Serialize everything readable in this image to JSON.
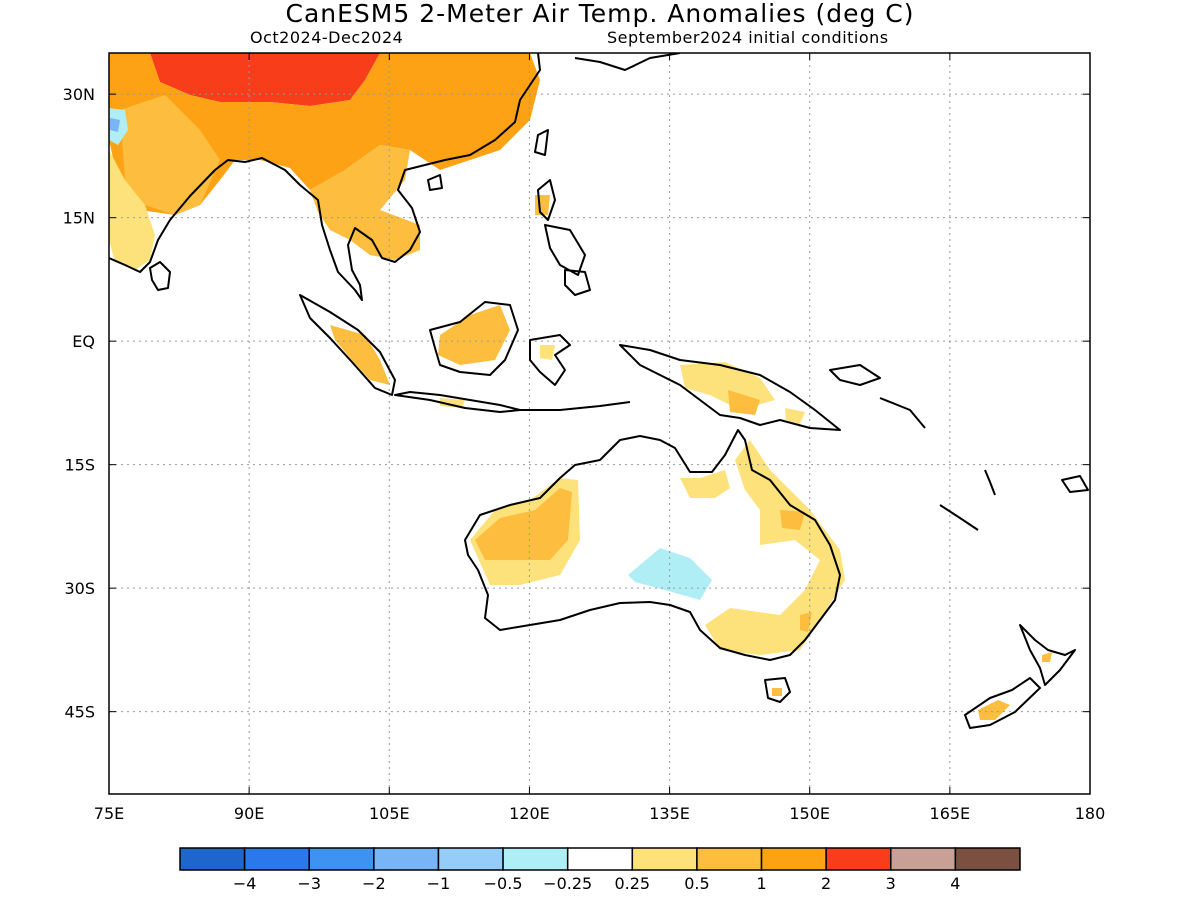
{
  "title": "CanESM5 2-Meter Air Temp. Anomalies (deg C)",
  "subtitle_left": "Oct2024-Dec2024",
  "subtitle_right": "September2024 initial conditions",
  "map": {
    "lon_range": [
      75,
      180
    ],
    "lat_range": [
      -55,
      35
    ],
    "lat_ticks": [
      {
        "value": 30,
        "label": "30N"
      },
      {
        "value": 15,
        "label": "15N"
      },
      {
        "value": 0,
        "label": "EQ"
      },
      {
        "value": -15,
        "label": "15S"
      },
      {
        "value": -30,
        "label": "30S"
      },
      {
        "value": -45,
        "label": "45S"
      }
    ],
    "lon_ticks": [
      {
        "value": 75,
        "label": "75E"
      },
      {
        "value": 90,
        "label": "90E"
      },
      {
        "value": 105,
        "label": "105E"
      },
      {
        "value": 120,
        "label": "120E"
      },
      {
        "value": 135,
        "label": "135E"
      },
      {
        "value": 150,
        "label": "150E"
      },
      {
        "value": 165,
        "label": "165E"
      },
      {
        "value": 180,
        "label": "180"
      }
    ],
    "grid": "dotted"
  },
  "colorbar": {
    "colors": [
      "#1f66cc",
      "#2a78ea",
      "#3e92f0",
      "#78b4f6",
      "#96ccf8",
      "#b0eef6",
      "#ffffff",
      "#fde27c",
      "#fdbd3e",
      "#fda214",
      "#f83d1a",
      "#c9a096",
      "#7b5041"
    ],
    "labels": [
      "-4",
      "-3",
      "-2",
      "-1",
      "-0.5",
      "-0.25",
      "0.25",
      "0.5",
      "1",
      "2",
      "3",
      "4"
    ]
  }
}
